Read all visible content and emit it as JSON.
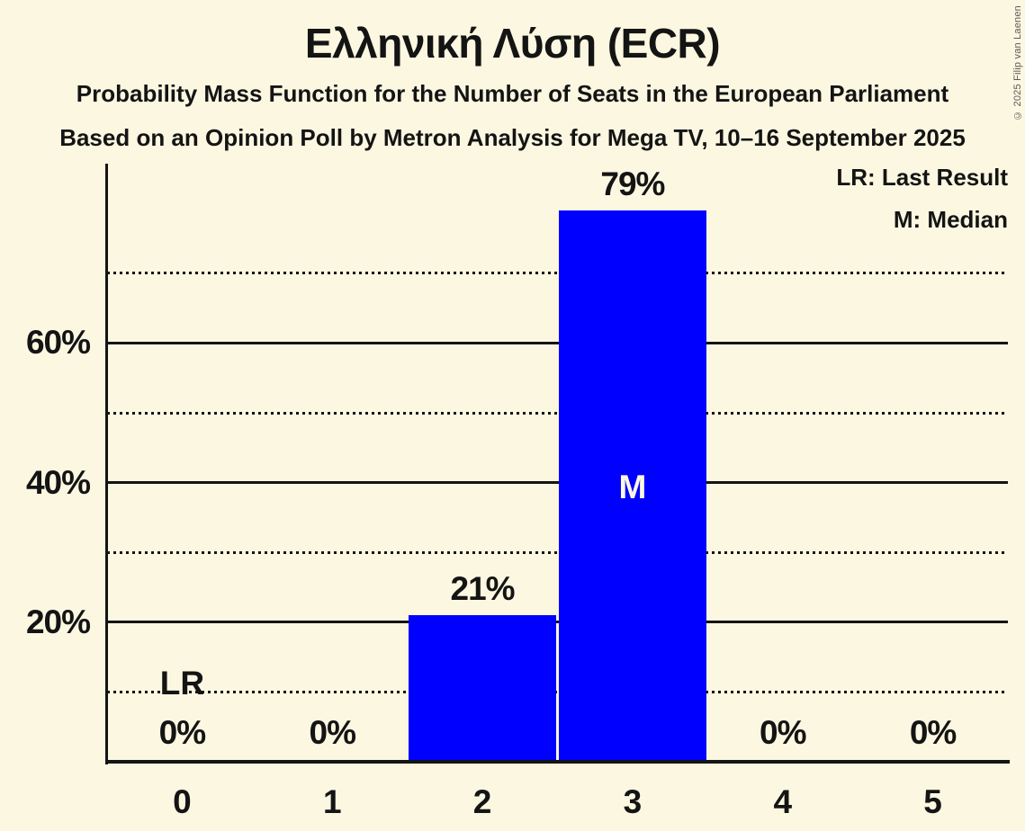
{
  "chart_data": {
    "type": "bar",
    "title": "Ελληνική Λύση (ECR)",
    "subtitle1": "Probability Mass Function for the Number of Seats in the European Parliament",
    "subtitle2": "Based on an Opinion Poll by Metron Analysis for Mega TV, 10–16 September 2025",
    "categories": [
      "0",
      "1",
      "2",
      "3",
      "4",
      "5"
    ],
    "values": [
      0,
      0,
      21,
      79,
      0,
      0
    ],
    "value_labels": [
      "0%",
      "0%",
      "21%",
      "79%",
      "0%",
      "0%"
    ],
    "xlabel": "",
    "ylabel": "",
    "ylim": [
      0,
      85.7
    ],
    "y_axis": {
      "solid_gridlines": [
        20,
        40,
        60
      ],
      "solid_gridline_labels": [
        "20%",
        "40%",
        "60%"
      ],
      "dotted_gridlines": [
        10,
        30,
        50,
        70
      ]
    },
    "legend": [
      "LR: Last Result",
      "M: Median"
    ],
    "legend_position": "top-right",
    "grid": "horizontal",
    "median_marker": "M",
    "median_category_index": 3,
    "last_result_marker": "LR",
    "last_result_category_index": 0,
    "colors": {
      "background": "#FCF7E1",
      "bar": "#0000FF",
      "text": "#141414",
      "median_label": "#FCF7E1",
      "gridline": "#141414",
      "copyright": "#5A5A5A"
    },
    "copyright": "© 2025 Filip van Laenen"
  }
}
